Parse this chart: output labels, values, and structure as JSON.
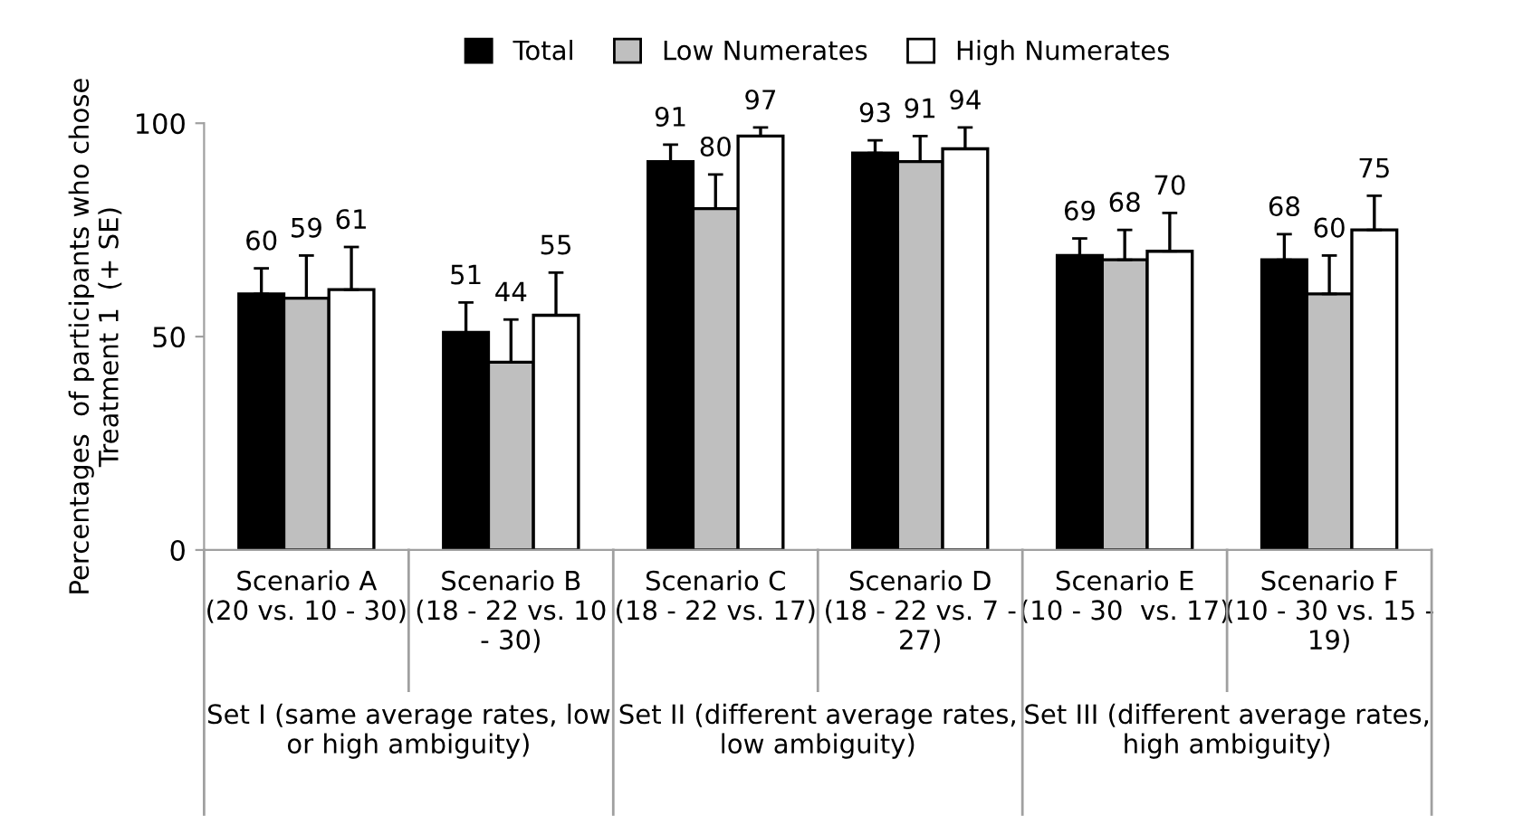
{
  "chart_data": {
    "type": "bar",
    "ylabel": "Percentages  of participants who chose\nTreatment 1  (+ SE)",
    "categories": [
      "Scenario A\n(20 vs. 10 - 30)",
      "Scenario B\n(18 - 22 vs. 10\n- 30)",
      "Scenario C\n(18 - 22 vs. 17)",
      "Scenario D\n(18 - 22 vs. 7 -\n27)",
      "Scenario E\n(10 - 30  vs. 17)",
      "Scenario F\n(10 - 30 vs. 15 -\n19)"
    ],
    "series": [
      {
        "name": "Total",
        "color": "#000000",
        "values": [
          60,
          51,
          91,
          93,
          69,
          68
        ],
        "errors": [
          6,
          7,
          4,
          3,
          4,
          6
        ]
      },
      {
        "name": "Low Numerates",
        "color": "#bfbfbf",
        "values": [
          59,
          44,
          80,
          91,
          68,
          60
        ],
        "errors": [
          10,
          10,
          8,
          6,
          7,
          9
        ]
      },
      {
        "name": "High Numerates",
        "color": "#ffffff",
        "values": [
          61,
          55,
          97,
          94,
          70,
          75
        ],
        "errors": [
          10,
          10,
          2,
          5,
          9,
          8
        ]
      }
    ],
    "annotations": [
      "Set I (same average rates, low\nor high ambiguity)",
      "Set II (different average rates,\nlow ambiguity)",
      "Set III (different average rates,\nhigh ambiguity)"
    ],
    "ylim": [
      0,
      100
    ],
    "yticks": [
      0,
      50,
      100
    ],
    "data_labels": true,
    "grid": false,
    "legend": "top"
  }
}
